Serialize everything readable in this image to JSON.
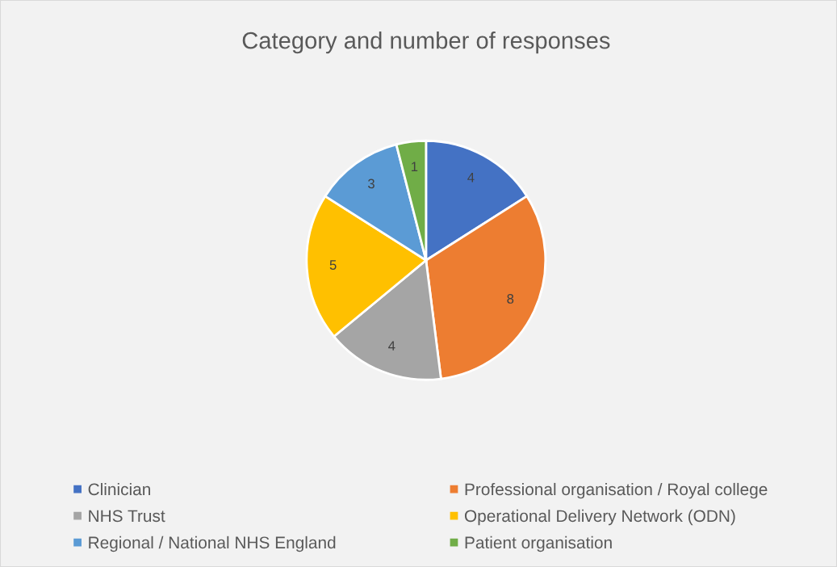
{
  "chart_data": {
    "type": "pie",
    "title": "Category and number of responses",
    "categories": [
      "Clinician",
      "Professional organisation / Royal college",
      "NHS Trust",
      "Operational Delivery Network (ODN)",
      "Regional / National NHS England",
      "Patient organisation"
    ],
    "values": [
      4,
      8,
      4,
      5,
      3,
      1
    ],
    "colors": [
      "#4472c4",
      "#ed7d31",
      "#a5a5a5",
      "#ffc000",
      "#5b9bd5",
      "#70ad47"
    ],
    "data_labels": true,
    "legend": "bottom"
  }
}
